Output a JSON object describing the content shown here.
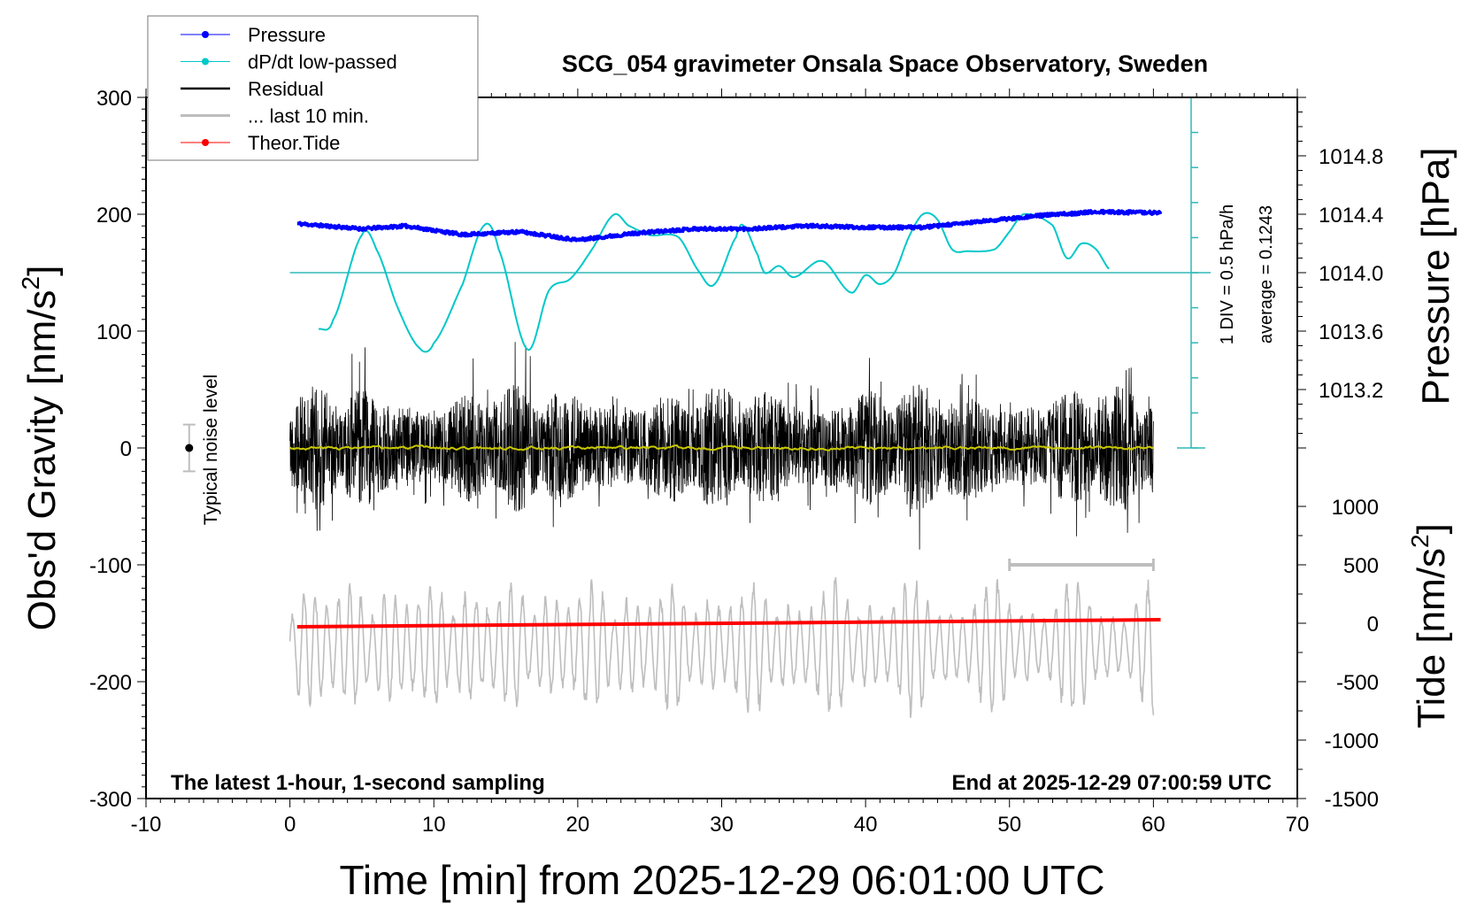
{
  "chart_data": {
    "type": "line",
    "title": "SCG_054 gravimeter Onsala Space Observatory, Sweden",
    "xlabel": "Time [min] from 2025-12-29 06:01:00 UTC",
    "ylabel_left": "Obs'd Gravity [nm/s2]",
    "ylabel_left_main": "Obs'd Gravity [nm/s",
    "ylabel_right_top": "Pressure [hPa]",
    "ylabel_right_bottom_main": "Tide [nm/s",
    "ylabel_right_bottom_close": "]",
    "ylabel_left_close": "]",
    "superscript": "2",
    "xlim": [
      -10,
      70
    ],
    "ylim_left": [
      -300,
      300
    ],
    "pressure_axis_ticks": [
      "1013.2",
      "1013.6",
      "1014.0",
      "1014.4",
      "1014.8"
    ],
    "tide_axis_ticks": [
      "1000",
      "500",
      "0",
      "-500",
      "-1000",
      "-1500"
    ],
    "x_ticks": [
      "-10",
      "0",
      "10",
      "20",
      "30",
      "40",
      "50",
      "60",
      "70"
    ],
    "y_ticks": [
      "300",
      "200",
      "100",
      "0",
      "-100",
      "-200",
      "-300"
    ],
    "annotation_left": "The latest 1-hour, 1-second sampling",
    "annotation_right": "End at 2025-12-29 07:00:59 UTC",
    "dpdt_scale_label": "1 DIV = 0.5 hPa/h",
    "dpdt_average_label": "average = 0.1243",
    "dpdt_average": 0.1243,
    "noise_label": "Typical noise level",
    "noise_level": {
      "x": -7,
      "center": 0,
      "halfwidth": 20
    },
    "last10_marker": {
      "x_start": 50,
      "x_end": 60,
      "y": -100
    },
    "legend": {
      "placement": "top-left",
      "items": [
        {
          "label": "Pressure",
          "color": "#0000ff",
          "marker": "dot"
        },
        {
          "label": "dP/dt low-passed",
          "color": "#00c8c8",
          "marker": "dot"
        },
        {
          "label": "Residual",
          "color": "#000000",
          "marker": "line"
        },
        {
          "label": "... last 10 min.",
          "color": "#bebebe",
          "marker": "line"
        },
        {
          "label": "Theor.Tide",
          "color": "#ff0000",
          "marker": "dot"
        }
      ]
    },
    "series": [
      {
        "name": "Pressure",
        "unit": "hPa",
        "color": "#0000ff",
        "x": [
          0.5,
          5,
          8,
          12,
          16,
          20,
          24,
          28,
          32,
          36,
          40,
          44,
          48,
          52,
          56,
          60.5
        ],
        "y": [
          1014.336,
          1014.3,
          1014.32,
          1014.26,
          1014.28,
          1014.224,
          1014.27,
          1014.3,
          1014.3,
          1014.32,
          1014.31,
          1014.31,
          1014.35,
          1014.39,
          1014.416,
          1014.41
        ]
      },
      {
        "name": "dP/dt low-passed",
        "unit": "hPa/h",
        "color": "#00c8c8",
        "x": [
          2,
          3,
          5,
          6,
          7.5,
          9,
          10,
          12,
          13.5,
          14.5,
          16.5,
          18,
          19.5,
          21,
          22.5,
          23.5,
          25,
          27,
          28.5,
          29.5,
          31,
          31.5,
          32.5,
          33,
          34,
          35,
          37,
          39,
          40,
          41,
          42,
          43,
          44,
          45,
          46,
          47,
          49,
          50,
          51,
          53,
          54,
          55,
          56,
          57
        ],
        "y": [
          -0.68,
          -0.55,
          0.66,
          0.46,
          -0.38,
          -0.95,
          -0.88,
          -0.04,
          0.8,
          0.46,
          -0.97,
          -0.13,
          0.04,
          0.46,
          0.95,
          0.8,
          0.66,
          0.63,
          0.12,
          -0.04,
          0.63,
          0.8,
          0.38,
          0.12,
          0.22,
          0.06,
          0.29,
          -0.16,
          0.09,
          -0.04,
          0.12,
          0.63,
          0.96,
          0.88,
          0.46,
          0.43,
          0.46,
          0.71,
          0.96,
          0.8,
          0.33,
          0.54,
          0.46,
          0.16
        ]
      },
      {
        "name": "Residual",
        "unit": "nm/s2",
        "color": "#000000",
        "x_range": [
          0,
          60
        ],
        "mean": 0,
        "typical_amplitude": 50,
        "peak_amplitude": 105
      },
      {
        "name": "Residual smoothed",
        "color": "#c8c800",
        "x_range": [
          0,
          60
        ],
        "mean": 0
      },
      {
        "name": "... last 10 min.",
        "unit": "nm/s2",
        "color": "#bebebe",
        "x_range": [
          0,
          60
        ],
        "baseline": -170,
        "typical_amplitude": 45,
        "peak_amplitude": 75
      },
      {
        "name": "Theor.Tide",
        "unit": "nm/s2",
        "color": "#ff0000",
        "x": [
          0.5,
          60.5
        ],
        "y": [
          -30,
          30
        ]
      }
    ]
  }
}
